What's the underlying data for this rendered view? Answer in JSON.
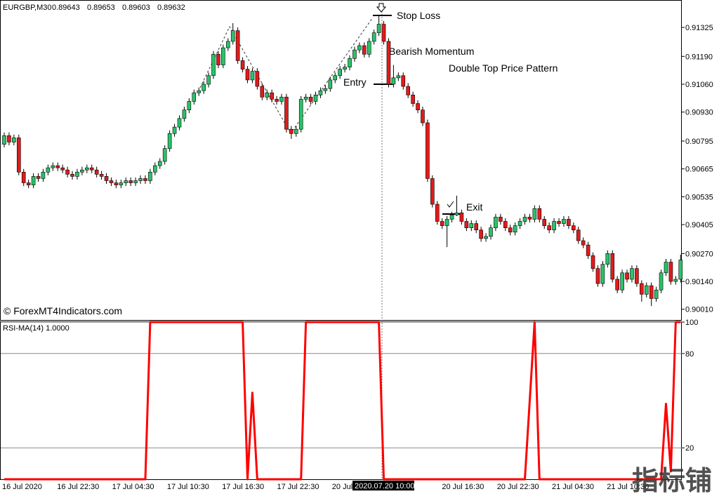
{
  "chart_data": [
    {
      "type": "candlestick",
      "title": "EURGBP,M30",
      "quote": [
        0.89643,
        0.89653,
        0.89603,
        0.89632
      ],
      "open": [
        0.9078,
        0.9082,
        0.9079,
        0.9081,
        0.9065,
        0.906,
        0.9059,
        0.9063,
        0.9062,
        0.9065,
        0.9067,
        0.9068,
        0.9067,
        0.9066,
        0.9064,
        0.9063,
        0.9065,
        0.9066,
        0.9067,
        0.9066,
        0.9064,
        0.9063,
        0.9061,
        0.906,
        0.9059,
        0.906,
        0.9061,
        0.906,
        0.9061,
        0.9062,
        0.9061,
        0.9065,
        0.9068,
        0.907,
        0.9076,
        0.9083,
        0.9086,
        0.909,
        0.9094,
        0.9098,
        0.9102,
        0.9103,
        0.9106,
        0.911,
        0.912,
        0.9115,
        0.9123,
        0.9126,
        0.9131,
        0.9117,
        0.9113,
        0.9108,
        0.9112,
        0.9105,
        0.91,
        0.9102,
        0.9099,
        0.9098,
        0.91,
        0.9085,
        0.9083,
        0.9085,
        0.9099,
        0.91,
        0.9098,
        0.9101,
        0.9103,
        0.9104,
        0.9108,
        0.911,
        0.9113,
        0.9114,
        0.9118,
        0.9122,
        0.9124,
        0.912,
        0.9126,
        0.913,
        0.9134,
        0.9126,
        0.9106,
        0.9109,
        0.911,
        0.9105,
        0.9101,
        0.9097,
        0.9094,
        0.9088,
        0.9062,
        0.905,
        0.9042,
        0.904,
        0.9043,
        0.9045,
        0.9046,
        0.9042,
        0.9039,
        0.9041,
        0.9038,
        0.9034,
        0.9035,
        0.9039,
        0.9044,
        0.9042,
        0.9039,
        0.9037,
        0.904,
        0.9042,
        0.9044,
        0.9043,
        0.9048,
        0.9043,
        0.904,
        0.9038,
        0.9042,
        0.9041,
        0.9043,
        0.904,
        0.9038,
        0.9033,
        0.9031,
        0.9026,
        0.902,
        0.9013,
        0.9022,
        0.9027,
        0.9015,
        0.901,
        0.9018,
        0.9015,
        0.902,
        0.9013,
        0.9008,
        0.9012,
        0.9006,
        0.901,
        0.9018,
        0.9023,
        0.9014,
        0.9015
      ],
      "high": [
        0.90835,
        0.90835,
        0.90825,
        0.90825,
        0.90665,
        0.90615,
        0.90645,
        0.90645,
        0.90665,
        0.90685,
        0.90695,
        0.90695,
        0.90685,
        0.90675,
        0.90655,
        0.90665,
        0.90675,
        0.90685,
        0.90685,
        0.90675,
        0.90655,
        0.90645,
        0.90625,
        0.90615,
        0.90615,
        0.90625,
        0.90625,
        0.90625,
        0.90635,
        0.90635,
        0.90665,
        0.90695,
        0.90715,
        0.90775,
        0.90845,
        0.90875,
        0.90915,
        0.90955,
        0.90995,
        0.91035,
        0.91045,
        0.91075,
        0.91115,
        0.91215,
        0.91215,
        0.91245,
        0.91275,
        0.91345,
        0.91325,
        0.91185,
        0.91145,
        0.91135,
        0.91135,
        0.91065,
        0.91035,
        0.91035,
        0.91005,
        0.91015,
        0.91015,
        0.90865,
        0.90865,
        0.91005,
        0.91015,
        0.91015,
        0.91025,
        0.91045,
        0.91055,
        0.91095,
        0.91115,
        0.91145,
        0.91155,
        0.91195,
        0.91235,
        0.91255,
        0.91255,
        0.91275,
        0.91315,
        0.9138,
        0.91355,
        0.91275,
        0.9115,
        0.91115,
        0.91115,
        0.91065,
        0.91025,
        0.90985,
        0.90955,
        0.90895,
        0.90635,
        0.90515,
        0.90435,
        0.90445,
        0.90465,
        0.9054,
        0.90475,
        0.90435,
        0.90425,
        0.90425,
        0.90395,
        0.90365,
        0.90405,
        0.90455,
        0.90455,
        0.90435,
        0.90405,
        0.90415,
        0.90435,
        0.90455,
        0.90455,
        0.90495,
        0.90495,
        0.90445,
        0.90415,
        0.90435,
        0.90435,
        0.90445,
        0.90445,
        0.90415,
        0.90395,
        0.90345,
        0.90325,
        0.90275,
        0.90215,
        0.90235,
        0.90285,
        0.90285,
        0.90165,
        0.90195,
        0.90195,
        0.90215,
        0.90215,
        0.90145,
        0.90135,
        0.90135,
        0.90115,
        0.90195,
        0.90245,
        0.90245,
        0.90165,
        0.90265
      ],
      "low": [
        0.90765,
        0.90775,
        0.90775,
        0.90635,
        0.90585,
        0.90575,
        0.90575,
        0.90605,
        0.90605,
        0.90635,
        0.90655,
        0.90655,
        0.90645,
        0.90625,
        0.90615,
        0.90615,
        0.90635,
        0.90645,
        0.90645,
        0.90625,
        0.90615,
        0.90595,
        0.90585,
        0.90575,
        0.90575,
        0.90585,
        0.90585,
        0.90585,
        0.90595,
        0.90595,
        0.90595,
        0.90635,
        0.90665,
        0.90685,
        0.90745,
        0.90815,
        0.90845,
        0.90885,
        0.90925,
        0.90965,
        0.91005,
        0.91015,
        0.91045,
        0.91085,
        0.91135,
        0.91135,
        0.91215,
        0.91245,
        0.91155,
        0.91115,
        0.91065,
        0.91065,
        0.91035,
        0.90985,
        0.90985,
        0.90975,
        0.90965,
        0.90965,
        0.90835,
        0.90805,
        0.90815,
        0.90835,
        0.90975,
        0.90965,
        0.90965,
        0.90995,
        0.91015,
        0.91025,
        0.91065,
        0.91085,
        0.91115,
        0.91125,
        0.91165,
        0.91205,
        0.91185,
        0.91185,
        0.91245,
        0.91285,
        0.91245,
        0.91045,
        0.91045,
        0.91075,
        0.91035,
        0.90995,
        0.90955,
        0.90925,
        0.90865,
        0.90605,
        0.90485,
        0.90405,
        0.90385,
        0.903,
        0.90415,
        0.90445,
        0.90405,
        0.90375,
        0.90375,
        0.90365,
        0.90325,
        0.90325,
        0.90335,
        0.90375,
        0.90405,
        0.90375,
        0.90355,
        0.90355,
        0.90385,
        0.90405,
        0.90415,
        0.90415,
        0.90415,
        0.90385,
        0.90365,
        0.90365,
        0.90395,
        0.90395,
        0.90385,
        0.90365,
        0.90315,
        0.90295,
        0.90245,
        0.90185,
        0.90115,
        0.90115,
        0.90205,
        0.90135,
        0.90085,
        0.90085,
        0.90135,
        0.90135,
        0.90115,
        0.90045,
        0.90065,
        0.90025,
        0.90045,
        0.90085,
        0.90165,
        0.90125,
        0.90125,
        0.90135
      ],
      "close": [
        0.9082,
        0.9079,
        0.9081,
        0.9065,
        0.906,
        0.9059,
        0.9063,
        0.9062,
        0.9065,
        0.9067,
        0.9068,
        0.9067,
        0.9066,
        0.9064,
        0.9063,
        0.9065,
        0.9066,
        0.9067,
        0.9066,
        0.9064,
        0.9063,
        0.9061,
        0.906,
        0.9059,
        0.906,
        0.9061,
        0.906,
        0.9061,
        0.9062,
        0.9061,
        0.9065,
        0.9068,
        0.907,
        0.9076,
        0.9083,
        0.9086,
        0.909,
        0.9094,
        0.9098,
        0.9102,
        0.9103,
        0.9106,
        0.911,
        0.912,
        0.9115,
        0.9123,
        0.9126,
        0.9131,
        0.9117,
        0.9113,
        0.9108,
        0.9112,
        0.9105,
        0.91,
        0.9102,
        0.9099,
        0.9098,
        0.91,
        0.9085,
        0.9083,
        0.9085,
        0.9099,
        0.91,
        0.9098,
        0.9101,
        0.9103,
        0.9104,
        0.9108,
        0.911,
        0.9113,
        0.9114,
        0.9118,
        0.9122,
        0.9124,
        0.912,
        0.9126,
        0.913,
        0.9134,
        0.9126,
        0.9106,
        0.9109,
        0.911,
        0.9105,
        0.9101,
        0.9097,
        0.9094,
        0.9088,
        0.9062,
        0.905,
        0.9042,
        0.904,
        0.9043,
        0.9045,
        0.9046,
        0.9042,
        0.9039,
        0.9041,
        0.9038,
        0.9034,
        0.9035,
        0.9039,
        0.9044,
        0.9042,
        0.9039,
        0.9037,
        0.904,
        0.9042,
        0.9044,
        0.9043,
        0.9048,
        0.9043,
        0.904,
        0.9038,
        0.9042,
        0.9041,
        0.9043,
        0.904,
        0.9038,
        0.9033,
        0.9031,
        0.9026,
        0.902,
        0.9013,
        0.9022,
        0.9027,
        0.9015,
        0.901,
        0.9018,
        0.9015,
        0.902,
        0.9013,
        0.9008,
        0.9012,
        0.9006,
        0.901,
        0.9018,
        0.9023,
        0.9014,
        0.9015,
        0.9024
      ],
      "up_color": "#2bc26a",
      "down_color": "#e21b1b",
      "ylim": [
        0.8996,
        0.91453
      ],
      "yticks": [
        0.91325,
        {
          "value": 0.9119,
          "label": "0.91190"
        },
        {
          "value": 0.9106,
          "label": "0.91060"
        },
        {
          "value": 0.9093,
          "label": "0.90930"
        },
        0.90795,
        0.90665,
        0.90535,
        0.90405,
        {
          "value": 0.9027,
          "label": "0.90270"
        },
        {
          "value": 0.9014,
          "label": "0.90140"
        },
        {
          "value": 0.9001,
          "label": "0.90010"
        }
      ],
      "grid": false,
      "annotations": [
        "Stop Loss",
        "Bearish Momentum",
        "Double Top Price Pattern",
        "Entry",
        "Exit"
      ],
      "source": "© ForexMT4Indicators.com"
    },
    {
      "type": "line",
      "title": "RSI-MA(14) 1.0000",
      "color": "#ff0000",
      "values": [
        0,
        0,
        0,
        0,
        0,
        0,
        0,
        0,
        0,
        0,
        0,
        0,
        0,
        0,
        0,
        0,
        0,
        0,
        0,
        0,
        0,
        0,
        0,
        0,
        0,
        0,
        0,
        0,
        0,
        0,
        100,
        100,
        100,
        100,
        100,
        100,
        100,
        100,
        100,
        100,
        100,
        100,
        100,
        100,
        100,
        100,
        100,
        100,
        100,
        100,
        0,
        55,
        0,
        0,
        0,
        0,
        0,
        0,
        0,
        0,
        0,
        0,
        100,
        100,
        100,
        100,
        100,
        100,
        100,
        100,
        100,
        100,
        100,
        100,
        100,
        100,
        100,
        100,
        0,
        0,
        0,
        0,
        0,
        0,
        0,
        0,
        0,
        0,
        0,
        0,
        0,
        0,
        0,
        0,
        0,
        0,
        0,
        0,
        0,
        0,
        0,
        0,
        0,
        0,
        0,
        0,
        0,
        0,
        50,
        100,
        0,
        0,
        0,
        0,
        0,
        0,
        0,
        0,
        0,
        0,
        0,
        0,
        0,
        0,
        0,
        0,
        0,
        0,
        0,
        0,
        0,
        0,
        0,
        0,
        0,
        0,
        48,
        5,
        100,
        100
      ],
      "ylim": [
        0,
        100
      ],
      "yticks": [
        100,
        80,
        20
      ],
      "grid": true,
      "x_labels": [
        "16 Jul 2020",
        "16 Jul 22:30",
        "17 Jul 04:30",
        "17 Jul 10:30",
        "17 Jul 16:30",
        "17 Jul 22:30",
        "20 Jul",
        null,
        "20 Jul 16:30",
        "20 Jul 22:30",
        "21 Jul 04:30",
        "21 Jul 10:30"
      ],
      "crosshair_label": "2020.07.20 10:00"
    }
  ],
  "watermark": "指标铺"
}
